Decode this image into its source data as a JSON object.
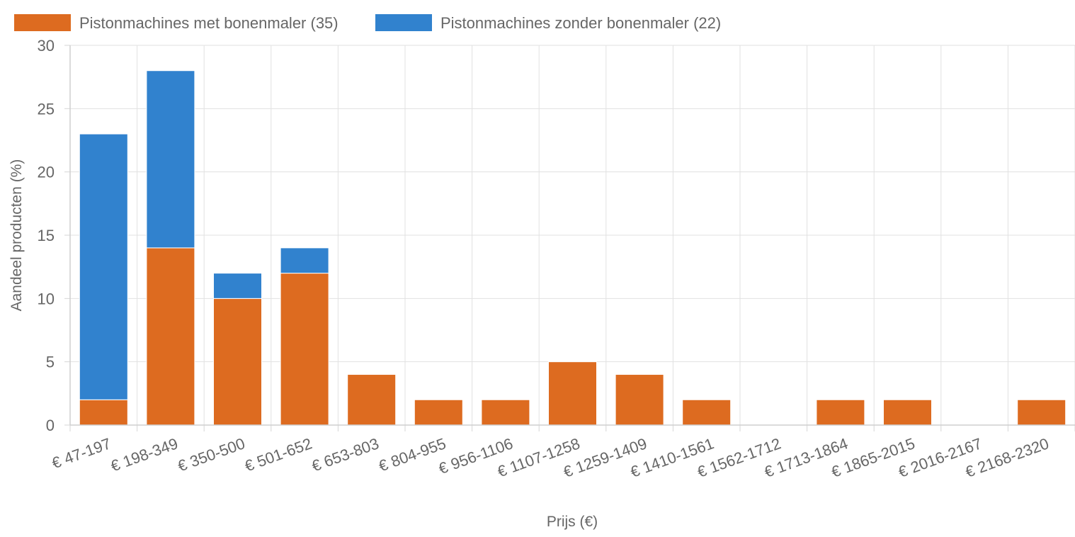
{
  "chart_data": {
    "type": "bar",
    "stacked": true,
    "title": "",
    "xlabel": "Prijs (€)",
    "ylabel": "Aandeel producten (%)",
    "ylim": [
      0,
      30
    ],
    "yticks": [
      0,
      5,
      10,
      15,
      20,
      25,
      30
    ],
    "grid": true,
    "legend_position": "top-left",
    "categories": [
      "€ 47-197",
      "€ 198-349",
      "€ 350-500",
      "€ 501-652",
      "€ 653-803",
      "€ 804-955",
      "€ 956-1106",
      "€ 1107-1258",
      "€ 1259-1409",
      "€ 1410-1561",
      "€ 1562-1712",
      "€ 1713-1864",
      "€ 1865-2015",
      "€ 2016-2167",
      "€ 2168-2320"
    ],
    "series": [
      {
        "name": "Pistonmachines met bonenmaler (35)",
        "color": "#dd6b20",
        "values": [
          2,
          14,
          10,
          12,
          4,
          2,
          2,
          5,
          4,
          2,
          0,
          2,
          2,
          0,
          2
        ]
      },
      {
        "name": "Pistonmachines zonder bonenmaler (22)",
        "color": "#3182ce",
        "values": [
          21,
          14,
          2,
          2,
          0,
          0,
          0,
          0,
          0,
          0,
          0,
          0,
          0,
          0,
          0
        ]
      }
    ]
  }
}
